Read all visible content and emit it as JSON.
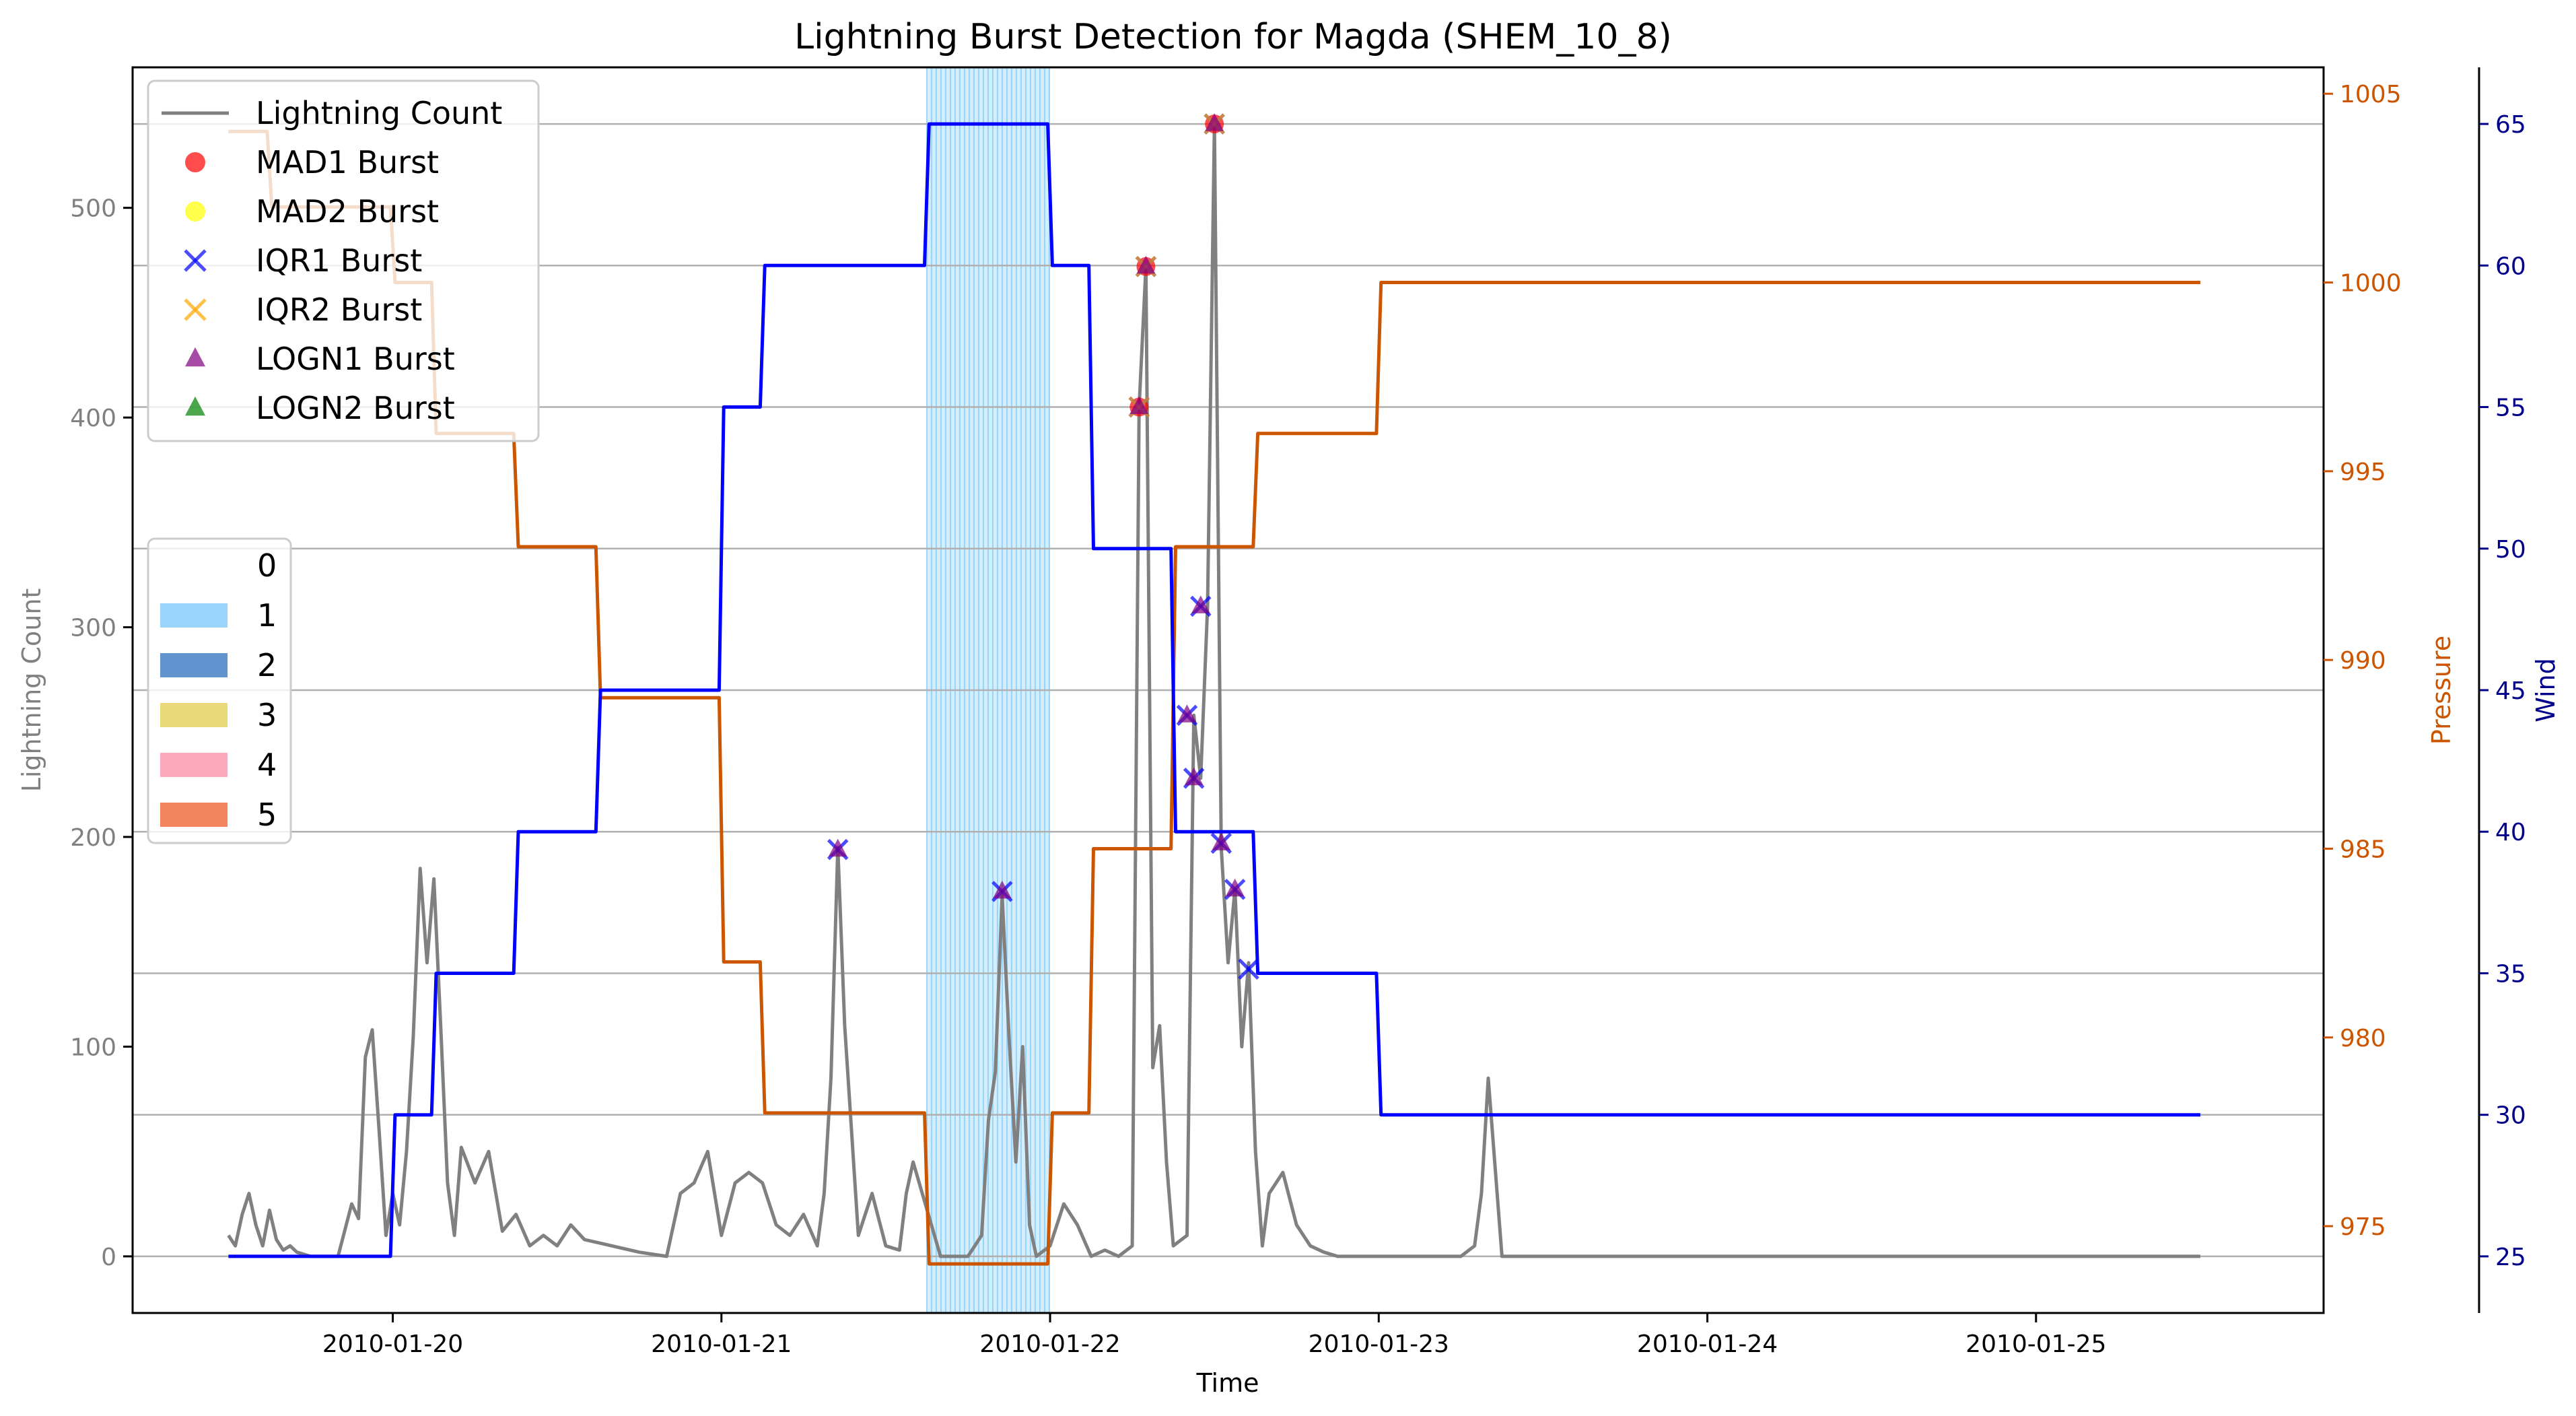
{
  "chart_data": {
    "type": "line",
    "title": "Lightning Burst Detection for Magda (SHEM_10_8)",
    "xlabel": "Time",
    "ylabel_left": "Lightning Count",
    "ylabel_pressure": "Pressure",
    "ylabel_wind": "Wind",
    "x_range": [
      "2010-01-19T05:00",
      "2010-01-25T21:00"
    ],
    "x_ticks": [
      "2010-01-20",
      "2010-01-21",
      "2010-01-22",
      "2010-01-23",
      "2010-01-24",
      "2010-01-25"
    ],
    "ylim_left": [
      -27,
      567
    ],
    "yticks_left": [
      0,
      100,
      200,
      300,
      400,
      500
    ],
    "ylim_pressure": [
      972.7,
      1005.7
    ],
    "yticks_pressure": [
      975,
      980,
      985,
      990,
      995,
      1000,
      1005
    ],
    "ylim_wind": [
      23,
      67
    ],
    "yticks_wind": [
      25,
      30,
      35,
      40,
      45,
      50,
      55,
      60,
      65
    ],
    "grid_wind": true,
    "colors": {
      "lightning": "#808080",
      "pressure": "#cc5500",
      "wind": "#0000ff",
      "pressure_axis": "#cc5500",
      "wind_axis": "#00008b",
      "left_axis": "#808080",
      "grid": "#b0b0b0",
      "category_1": "#87cefa"
    },
    "wind_series": {
      "name": "Wind",
      "t": [
        "2010-01-19T12:00",
        "2010-01-19T23:50",
        "2010-01-20T00:10",
        "2010-01-20T02:50",
        "2010-01-20T03:10",
        "2010-01-20T08:50",
        "2010-01-20T09:10",
        "2010-01-20T14:50",
        "2010-01-20T15:10",
        "2010-01-20T23:50",
        "2010-01-21T00:10",
        "2010-01-21T02:50",
        "2010-01-21T03:10",
        "2010-01-21T14:50",
        "2010-01-21T15:10",
        "2010-01-21T23:50",
        "2010-01-22T00:10",
        "2010-01-22T02:50",
        "2010-01-22T03:10",
        "2010-01-22T08:50",
        "2010-01-22T09:10",
        "2010-01-22T14:50",
        "2010-01-22T15:10",
        "2010-01-22T23:50",
        "2010-01-23T00:10",
        "2010-01-25T12:00"
      ],
      "y": [
        25,
        25,
        30,
        30,
        35,
        35,
        40,
        40,
        45,
        45,
        55,
        55,
        60,
        60,
        65,
        65,
        60,
        60,
        50,
        50,
        40,
        40,
        35,
        35,
        30,
        30
      ]
    },
    "pressure_series": {
      "name": "Pressure",
      "t": [
        "2010-01-19T12:00",
        "2010-01-19T14:50",
        "2010-01-19T15:10",
        "2010-01-19T23:50",
        "2010-01-20T00:10",
        "2010-01-20T02:50",
        "2010-01-20T03:10",
        "2010-01-20T08:50",
        "2010-01-20T09:10",
        "2010-01-20T14:50",
        "2010-01-20T15:10",
        "2010-01-20T23:50",
        "2010-01-21T00:10",
        "2010-01-21T02:50",
        "2010-01-21T03:10",
        "2010-01-21T14:50",
        "2010-01-21T15:10",
        "2010-01-21T23:50",
        "2010-01-22T00:10",
        "2010-01-22T02:50",
        "2010-01-22T03:10",
        "2010-01-22T08:50",
        "2010-01-22T09:10",
        "2010-01-22T14:50",
        "2010-01-22T15:10",
        "2010-01-22T23:50",
        "2010-01-23T00:10",
        "2010-01-25T12:00"
      ],
      "y": [
        1004,
        1004,
        1002,
        1002,
        1000,
        1000,
        996,
        996,
        993,
        993,
        989,
        989,
        982,
        982,
        978,
        978,
        974,
        974,
        978,
        978,
        985,
        985,
        993,
        993,
        996,
        996,
        1000,
        1000
      ]
    },
    "lightning_series": {
      "name": "Lightning Count",
      "t": [
        "2010-01-19T12:00",
        "2010-01-19T12:30",
        "2010-01-19T13:00",
        "2010-01-19T13:30",
        "2010-01-19T14:00",
        "2010-01-19T14:30",
        "2010-01-19T15:00",
        "2010-01-19T15:30",
        "2010-01-19T16:00",
        "2010-01-19T16:30",
        "2010-01-19T17:00",
        "2010-01-19T18:00",
        "2010-01-19T20:00",
        "2010-01-19T21:00",
        "2010-01-19T21:30",
        "2010-01-19T22:00",
        "2010-01-19T22:30",
        "2010-01-19T23:00",
        "2010-01-19T23:30",
        "2010-01-20T00:00",
        "2010-01-20T00:30",
        "2010-01-20T01:00",
        "2010-01-20T01:30",
        "2010-01-20T02:00",
        "2010-01-20T02:30",
        "2010-01-20T03:00",
        "2010-01-20T03:30",
        "2010-01-20T04:00",
        "2010-01-20T04:30",
        "2010-01-20T05:00",
        "2010-01-20T06:00",
        "2010-01-20T07:00",
        "2010-01-20T08:00",
        "2010-01-20T09:00",
        "2010-01-20T10:00",
        "2010-01-20T11:00",
        "2010-01-20T12:00",
        "2010-01-20T13:00",
        "2010-01-20T14:00",
        "2010-01-20T16:00",
        "2010-01-20T18:00",
        "2010-01-20T20:00",
        "2010-01-20T21:00",
        "2010-01-20T22:00",
        "2010-01-20T23:00",
        "2010-01-21T00:00",
        "2010-01-21T01:00",
        "2010-01-21T02:00",
        "2010-01-21T03:00",
        "2010-01-21T04:00",
        "2010-01-21T05:00",
        "2010-01-21T06:00",
        "2010-01-21T07:00",
        "2010-01-21T07:30",
        "2010-01-21T08:00",
        "2010-01-21T08:30",
        "2010-01-21T09:00",
        "2010-01-21T10:00",
        "2010-01-21T11:00",
        "2010-01-21T12:00",
        "2010-01-21T13:00",
        "2010-01-21T13:30",
        "2010-01-21T14:00",
        "2010-01-21T16:00",
        "2010-01-21T18:00",
        "2010-01-21T19:00",
        "2010-01-21T19:30",
        "2010-01-21T20:00",
        "2010-01-21T20:30",
        "2010-01-21T21:00",
        "2010-01-21T21:30",
        "2010-01-21T22:00",
        "2010-01-21T22:30",
        "2010-01-21T23:00",
        "2010-01-22T00:00",
        "2010-01-22T01:00",
        "2010-01-22T02:00",
        "2010-01-22T03:00",
        "2010-01-22T04:00",
        "2010-01-22T05:00",
        "2010-01-22T06:00",
        "2010-01-22T06:30",
        "2010-01-22T07:00",
        "2010-01-22T07:30",
        "2010-01-22T08:00",
        "2010-01-22T08:30",
        "2010-01-22T09:00",
        "2010-01-22T10:00",
        "2010-01-22T10:30",
        "2010-01-22T11:00",
        "2010-01-22T11:30",
        "2010-01-22T12:00",
        "2010-01-22T12:30",
        "2010-01-22T13:00",
        "2010-01-22T13:30",
        "2010-01-22T14:00",
        "2010-01-22T14:30",
        "2010-01-22T15:00",
        "2010-01-22T15:30",
        "2010-01-22T16:00",
        "2010-01-22T17:00",
        "2010-01-22T18:00",
        "2010-01-22T19:00",
        "2010-01-22T20:00",
        "2010-01-22T21:00",
        "2010-01-22T22:00",
        "2010-01-23T00:00",
        "2010-01-23T04:00",
        "2010-01-23T06:00",
        "2010-01-23T07:00",
        "2010-01-23T07:30",
        "2010-01-23T08:00",
        "2010-01-23T09:00",
        "2010-01-25T12:00"
      ],
      "y": [
        10,
        5,
        20,
        30,
        15,
        5,
        22,
        8,
        3,
        5,
        2,
        0,
        0,
        25,
        18,
        95,
        108,
        60,
        10,
        30,
        15,
        50,
        105,
        185,
        140,
        180,
        110,
        35,
        10,
        52,
        35,
        50,
        12,
        20,
        5,
        10,
        5,
        15,
        8,
        5,
        2,
        0,
        30,
        35,
        50,
        10,
        35,
        40,
        35,
        15,
        10,
        20,
        5,
        30,
        85,
        195,
        110,
        10,
        30,
        5,
        3,
        30,
        45,
        0,
        0,
        10,
        65,
        88,
        172,
        105,
        45,
        100,
        15,
        0,
        5,
        25,
        15,
        0,
        3,
        0,
        5,
        405,
        472,
        90,
        110,
        45,
        5,
        10,
        258,
        228,
        310,
        540,
        195,
        140,
        175,
        100,
        140,
        50,
        5,
        30,
        40,
        15,
        5,
        2,
        0,
        0,
        0,
        0,
        0,
        5,
        30,
        85,
        0,
        0
      ]
    },
    "category_band": {
      "category": "1",
      "start": "2010-01-21T15:00",
      "end": "2010-01-22T00:00"
    },
    "markers": {
      "mad1": {
        "name": "MAD1 Burst",
        "color": "#ff0000",
        "t": [
          "2010-01-22T06:30",
          "2010-01-22T07:00",
          "2010-01-22T12:00"
        ],
        "y": [
          405,
          472,
          540
        ]
      },
      "mad2": {
        "name": "MAD2 Burst",
        "color": "#ffff00",
        "t": [],
        "y": []
      },
      "iqr1": {
        "name": "IQR1 Burst",
        "color": "#0000ff",
        "t": [
          "2010-01-21T08:30",
          "2010-01-21T20:30",
          "2010-01-22T06:30",
          "2010-01-22T07:00",
          "2010-01-22T10:00",
          "2010-01-22T10:30",
          "2010-01-22T11:00",
          "2010-01-22T12:00",
          "2010-01-22T12:30",
          "2010-01-22T13:30",
          "2010-01-22T14:30"
        ],
        "y": [
          194,
          174,
          405,
          472,
          258,
          228,
          310,
          540,
          197,
          175,
          137
        ]
      },
      "iqr2": {
        "name": "IQR2 Burst",
        "color": "#ffa500",
        "t": [
          "2010-01-22T06:30",
          "2010-01-22T07:00",
          "2010-01-22T12:00"
        ],
        "y": [
          405,
          472,
          540
        ]
      },
      "logn1": {
        "name": "LOGN1 Burst",
        "color": "#800080",
        "t": [
          "2010-01-21T08:30",
          "2010-01-21T20:30",
          "2010-01-22T06:30",
          "2010-01-22T07:00",
          "2010-01-22T10:00",
          "2010-01-22T10:30",
          "2010-01-22T11:00",
          "2010-01-22T12:00",
          "2010-01-22T12:30",
          "2010-01-22T13:30"
        ],
        "y": [
          194,
          174,
          405,
          472,
          258,
          228,
          310,
          540,
          197,
          175
        ]
      },
      "logn2": {
        "name": "LOGN2 Burst",
        "color": "#008000",
        "t": [],
        "y": []
      }
    },
    "legend_series": {
      "placement": "upper-left",
      "entries": [
        {
          "label": "Lightning Count",
          "kind": "line",
          "color": "#808080"
        },
        {
          "label": "MAD1 Burst",
          "kind": "circle",
          "color": "#ff0000"
        },
        {
          "label": "MAD2 Burst",
          "kind": "circle",
          "color": "#ffff00"
        },
        {
          "label": "IQR1 Burst",
          "kind": "x",
          "color": "#0000ff"
        },
        {
          "label": "IQR2 Burst",
          "kind": "x",
          "color": "#ffa500"
        },
        {
          "label": "LOGN1 Burst",
          "kind": "triangle",
          "color": "#800080"
        },
        {
          "label": "LOGN2 Burst",
          "kind": "triangle",
          "color": "#008000"
        }
      ]
    },
    "legend_categories": {
      "placement": "center-left",
      "entries": [
        {
          "label": "0",
          "color": ""
        },
        {
          "label": "1",
          "color": "#87cefa"
        },
        {
          "label": "2",
          "color": "#4682c8"
        },
        {
          "label": "3",
          "color": "#e6d264"
        },
        {
          "label": "4",
          "color": "#ff9ab0"
        },
        {
          "label": "5",
          "color": "#f07040"
        }
      ]
    }
  }
}
